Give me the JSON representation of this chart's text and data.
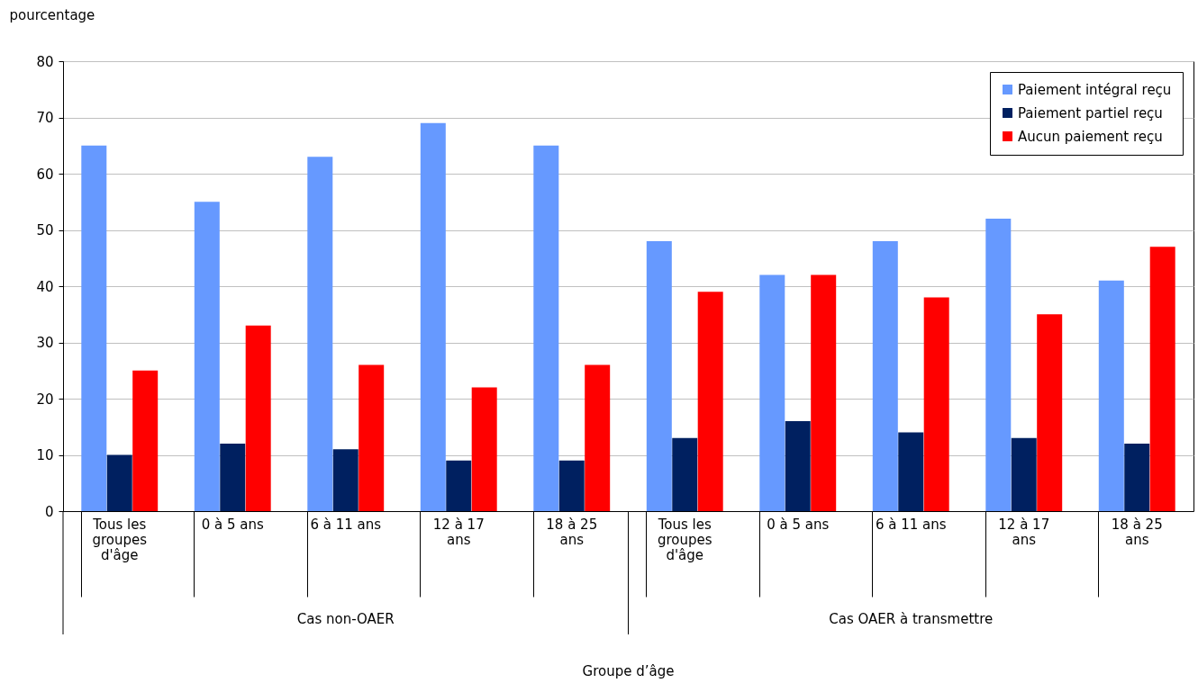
{
  "chart_data": {
    "type": "bar",
    "ylabel": "pourcentage",
    "categories": [
      "Tous les groupes d'âge",
      "0 à 5 ans",
      "6 à 11 ans",
      "12 à 17 ans",
      "18 à 25 ans",
      "Tous les groupes d'âge",
      "0 à 5 ans",
      "6 à 11 ans",
      "12 à 17 ans",
      "18 à 25 ans"
    ],
    "series": [
      {
        "name": "Paiement intégral reçu",
        "color": "#6699ff",
        "values": [
          65,
          55,
          63,
          69,
          65,
          48,
          42,
          48,
          52,
          41
        ]
      },
      {
        "name": "Paiement partiel reçu",
        "color": "#002060",
        "values": [
          10,
          12,
          11,
          9,
          9,
          13,
          16,
          14,
          13,
          12
        ]
      },
      {
        "name": "Aucun paiement reçu",
        "color": "#ff0000",
        "values": [
          25,
          33,
          26,
          22,
          26,
          39,
          42,
          38,
          35,
          47
        ]
      }
    ],
    "annotations": [
      "Cas non-OAER",
      "Cas OAER à transmettre",
      "Groupe d’âge"
    ],
    "ylim": [
      0,
      80
    ],
    "yticks": [
      0,
      10,
      20,
      30,
      40,
      50,
      60,
      70,
      80
    ],
    "grid": "y",
    "legend": "top right"
  }
}
